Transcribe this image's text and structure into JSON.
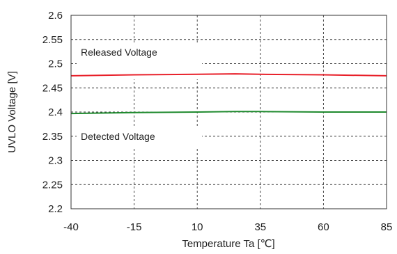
{
  "chart_data": {
    "type": "line",
    "xlabel": "Temperature Ta [℃]",
    "ylabel": "UVLO Voltage [V]",
    "xlim": [
      -40,
      85
    ],
    "ylim": [
      2.2,
      2.6
    ],
    "x_ticks": [
      "-40",
      "-15",
      "10",
      "35",
      "60",
      "85"
    ],
    "y_ticks": [
      "2.2",
      "2.25",
      "2.3",
      "2.35",
      "2.4",
      "2.45",
      "2.5",
      "2.55",
      "2.6"
    ],
    "grid": true,
    "grid_style": "dashed",
    "annotations": [
      "Released Voltage",
      "Detected Voltage"
    ],
    "series": [
      {
        "color": "#e8202a",
        "x": [
          -40,
          -15,
          10,
          25,
          35,
          60,
          85
        ],
        "y": [
          2.475,
          2.477,
          2.478,
          2.479,
          2.478,
          2.477,
          2.475
        ]
      },
      {
        "color": "#1f8a2e",
        "x": [
          -40,
          -15,
          10,
          25,
          35,
          60,
          85
        ],
        "y": [
          2.397,
          2.399,
          2.4,
          2.401,
          2.401,
          2.4,
          2.4
        ]
      }
    ]
  }
}
